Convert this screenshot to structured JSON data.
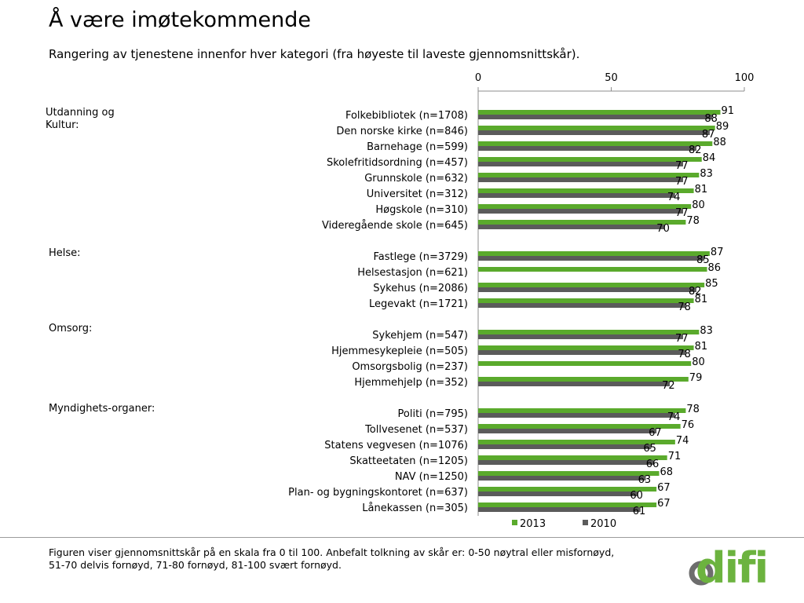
{
  "title": "Å være imøtekommende",
  "subtitle": "Rangering av tjenestene innenfor hver kategori (fra høyeste til laveste gjennomsnittskår).",
  "footnote_line1": "Figuren viser gjennomsnittskår på en skala fra 0 til 100. Anbefalt tolkning av skår er: 0-50 nøytral eller misfornøyd,",
  "footnote_line2": "51-70 delvis fornøyd, 71-80 fornøyd, 81-100 svært fornøyd.",
  "logo_text": "difi",
  "colors": {
    "series_2013": "#5aaa2c",
    "series_2010": "#5b5b5b",
    "logo_green": "#6cb33f",
    "logo_grey": "#6d6d6d"
  },
  "groups": [
    {
      "label_lines": [
        "Utdanning og",
        "Kultur:"
      ]
    },
    {
      "label_lines": [
        "Helse:"
      ]
    },
    {
      "label_lines": [
        "Omsorg:"
      ]
    },
    {
      "label_lines": [
        "Myndighets-organer:"
      ]
    }
  ],
  "chart_data": {
    "type": "bar",
    "orientation": "horizontal",
    "xlim": [
      0,
      100
    ],
    "xticks": [
      0,
      50,
      100
    ],
    "legend_position": "bottom",
    "categories": [
      "Folkebibliotek (n=1708)",
      "Den norske kirke (n=846)",
      "Barnehage (n=599)",
      "Skolefritidsordning (n=457)",
      "Grunnskole (n=632)",
      "Universitet (n=312)",
      "Høgskole (n=310)",
      "Videregående skole (n=645)",
      "Fastlege (n=3729)",
      "Helsestasjon (n=621)",
      "Sykehus (n=2086)",
      "Legevakt (n=1721)",
      "Sykehjem (n=547)",
      "Hjemmesykepleie (n=505)",
      "Omsorgsbolig (n=237)",
      "Hjemmehjelp (n=352)",
      "Politi (n=795)",
      "Tollvesenet (n=537)",
      "Statens vegvesen (n=1076)",
      "Skatteetaten (n=1205)",
      "NAV (n=1250)",
      "Plan- og bygningskontoret (n=637)",
      "Lånekassen (n=305)"
    ],
    "category_group": [
      0,
      0,
      0,
      0,
      0,
      0,
      0,
      0,
      1,
      1,
      1,
      1,
      2,
      2,
      2,
      2,
      3,
      3,
      3,
      3,
      3,
      3,
      3
    ],
    "series": [
      {
        "name": "2013",
        "values": [
          91,
          89,
          88,
          84,
          83,
          81,
          80,
          78,
          87,
          86,
          85,
          81,
          83,
          81,
          80,
          79,
          78,
          76,
          74,
          71,
          68,
          67,
          67
        ]
      },
      {
        "name": "2010",
        "values": [
          88,
          87,
          82,
          77,
          77,
          74,
          77,
          70,
          85,
          null,
          82,
          78,
          77,
          78,
          null,
          72,
          74,
          67,
          65,
          66,
          63,
          60,
          61
        ]
      }
    ]
  }
}
